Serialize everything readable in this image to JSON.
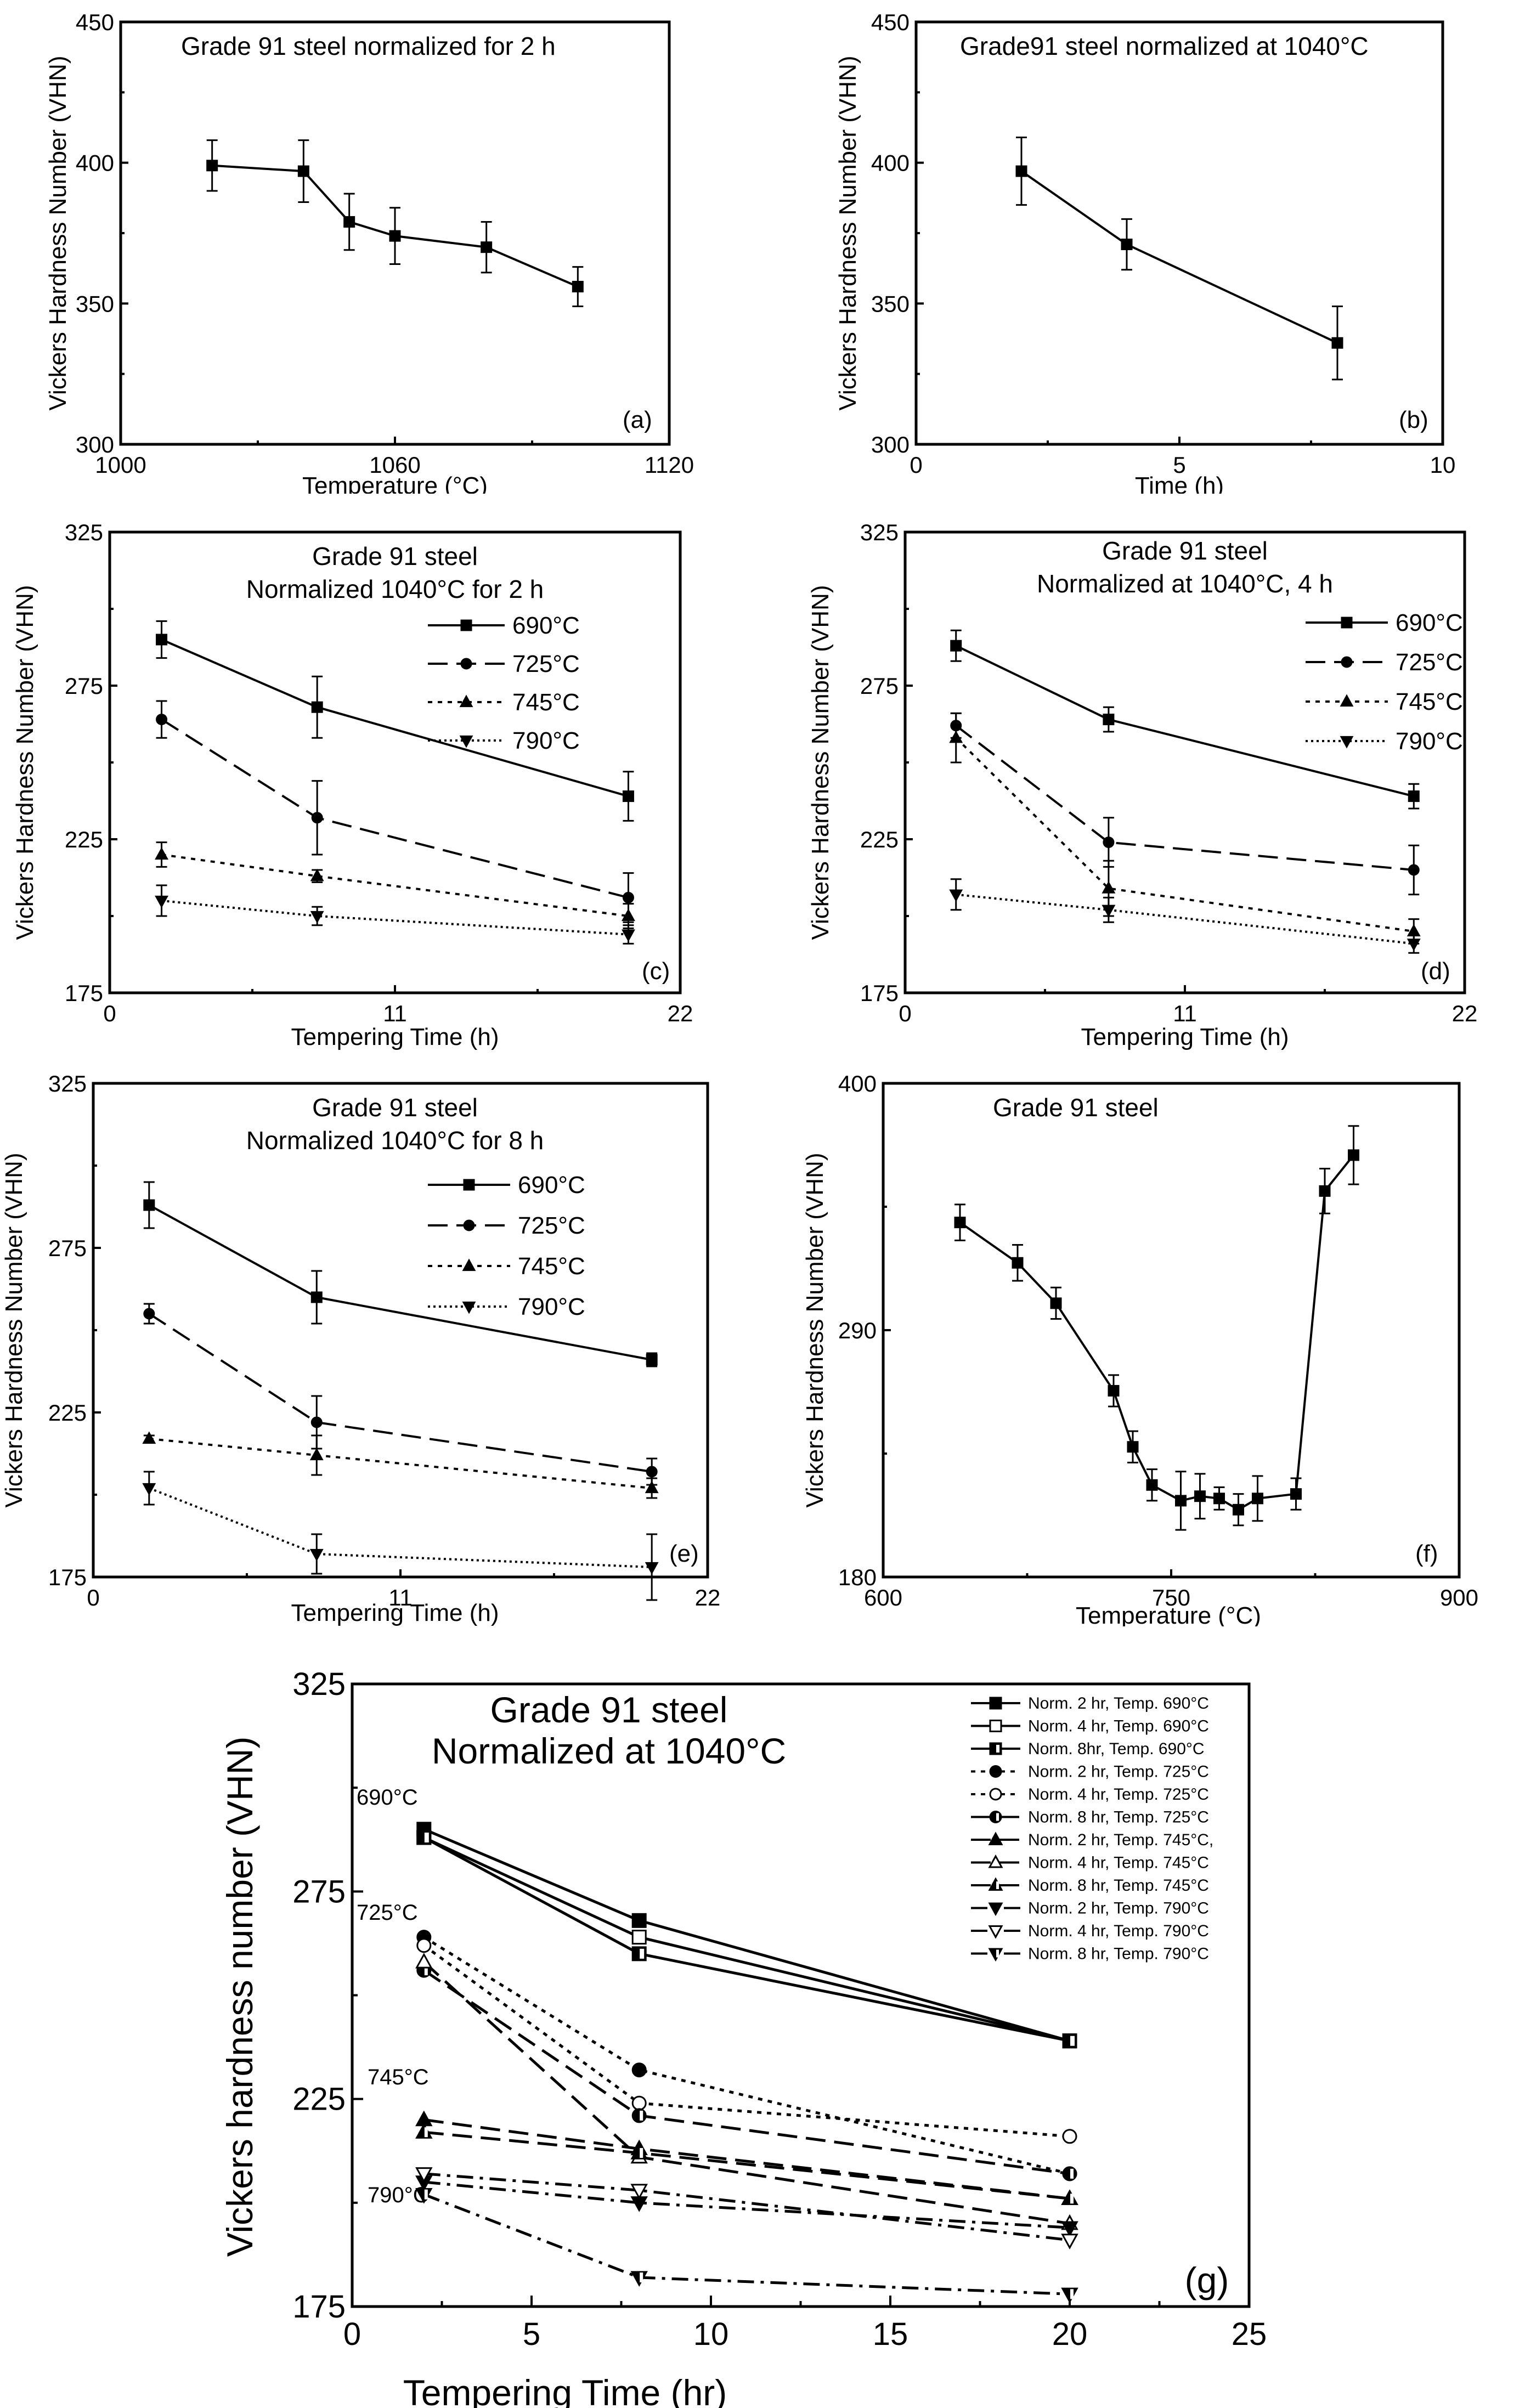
{
  "chart_data": [
    {
      "id": "a",
      "type": "line",
      "title": "Grade 91 steel normalized for 2 h",
      "xlabel": "Temperature (°C)",
      "ylabel": "Vickers Hardness Number (VHN)",
      "panel_label": "(a)",
      "xlim": [
        1000,
        1120
      ],
      "ylim": [
        300,
        450
      ],
      "xticks": [
        1000,
        1060,
        1120
      ],
      "yticks": [
        300,
        350,
        400,
        450
      ],
      "series": [
        {
          "name": "Grade 91",
          "marker": "square",
          "dash": "solid",
          "x": [
            1020,
            1040,
            1050,
            1060,
            1080,
            1100
          ],
          "values": [
            399,
            397,
            379,
            374,
            370,
            356
          ],
          "errors": [
            9,
            11,
            10,
            10,
            9,
            7
          ]
        }
      ]
    },
    {
      "id": "b",
      "type": "line",
      "title": "Grade91 steel normalized at 1040°C",
      "xlabel": "Time (h)",
      "ylabel": "Vickers Hardness Number (VHN)",
      "panel_label": "(b)",
      "xlim": [
        0,
        10
      ],
      "ylim": [
        300,
        450
      ],
      "xticks": [
        0,
        5,
        10
      ],
      "yticks": [
        300,
        350,
        400,
        450
      ],
      "series": [
        {
          "name": "Grade 91",
          "marker": "square",
          "dash": "solid",
          "x": [
            2,
            4,
            8
          ],
          "values": [
            397,
            371,
            336
          ],
          "errors": [
            12,
            9,
            13
          ]
        }
      ]
    },
    {
      "id": "c",
      "type": "line",
      "title": "Grade 91 steel",
      "subtitle": "Normalized 1040°C for 2 h",
      "xlabel": "Tempering Time (h)",
      "ylabel": "Vickers Hardness Number (VHN)",
      "panel_label": "(c)",
      "xlim": [
        0,
        22
      ],
      "ylim": [
        175,
        325
      ],
      "xticks": [
        0,
        11,
        22
      ],
      "yticks": [
        175,
        225,
        275,
        325
      ],
      "series": [
        {
          "name": "690°C",
          "marker": "square",
          "dash": "solid",
          "x": [
            2,
            8,
            20
          ],
          "values": [
            290,
            268,
            239
          ],
          "errors": [
            6,
            10,
            8
          ]
        },
        {
          "name": "725°C",
          "marker": "circle",
          "dash": "dashed",
          "x": [
            2,
            8,
            20
          ],
          "values": [
            264,
            232,
            206
          ],
          "errors": [
            6,
            12,
            8
          ]
        },
        {
          "name": "745°C",
          "marker": "triangle-up",
          "dash": "dotted",
          "x": [
            2,
            8,
            20
          ],
          "values": [
            220,
            213,
            200
          ],
          "errors": [
            4,
            2,
            4
          ]
        },
        {
          "name": "790°C",
          "marker": "triangle-down",
          "dash": "dense-dotted",
          "x": [
            2,
            8,
            20
          ],
          "values": [
            205,
            200,
            194
          ],
          "errors": [
            5,
            3,
            3
          ]
        }
      ]
    },
    {
      "id": "d",
      "type": "line",
      "title": "Grade 91 steel",
      "subtitle": "Normalized at 1040°C, 4 h",
      "xlabel": "Tempering Time (h)",
      "ylabel": "Vickers Hardness Number (VHN)",
      "panel_label": "(d)",
      "xlim": [
        0,
        22
      ],
      "ylim": [
        175,
        325
      ],
      "xticks": [
        0,
        11,
        22
      ],
      "yticks": [
        175,
        225,
        275,
        325
      ],
      "series": [
        {
          "name": "690°C",
          "marker": "square",
          "dash": "solid",
          "x": [
            2,
            8,
            20
          ],
          "values": [
            288,
            264,
            239
          ],
          "errors": [
            5,
            4,
            4
          ]
        },
        {
          "name": "725°C",
          "marker": "circle",
          "dash": "dashed",
          "x": [
            2,
            8,
            20
          ],
          "values": [
            262,
            224,
            215
          ],
          "errors": [
            4,
            8,
            8
          ]
        },
        {
          "name": "745°C",
          "marker": "triangle-up",
          "dash": "dotted",
          "x": [
            2,
            8,
            20
          ],
          "values": [
            258,
            209,
            195
          ],
          "errors": [
            8,
            9,
            4
          ]
        },
        {
          "name": "790°C",
          "marker": "triangle-down",
          "dash": "dense-dotted",
          "x": [
            2,
            8,
            20
          ],
          "values": [
            207,
            202,
            191
          ],
          "errors": [
            5,
            4,
            3
          ]
        }
      ]
    },
    {
      "id": "e",
      "type": "line",
      "title": "Grade 91 steel",
      "subtitle": "Normalized 1040°C for 8 h",
      "xlabel": "Tempering Time (h)",
      "ylabel": "Vickers Hardness Number (VHN)",
      "panel_label": "(e)",
      "xlim": [
        0,
        22
      ],
      "ylim": [
        175,
        325
      ],
      "xticks": [
        0,
        11,
        22
      ],
      "yticks": [
        175,
        225,
        275,
        325
      ],
      "series": [
        {
          "name": "690°C",
          "marker": "square",
          "dash": "solid",
          "x": [
            2,
            8,
            20
          ],
          "values": [
            288,
            260,
            241
          ],
          "errors": [
            7,
            8,
            2
          ]
        },
        {
          "name": "725°C",
          "marker": "circle",
          "dash": "dashed",
          "x": [
            2,
            8,
            20
          ],
          "values": [
            255,
            222,
            207
          ],
          "errors": [
            3,
            8,
            4
          ]
        },
        {
          "name": "745°C",
          "marker": "triangle-up",
          "dash": "dotted",
          "x": [
            2,
            8,
            20
          ],
          "values": [
            217,
            212,
            202
          ],
          "errors": [
            1,
            6,
            3
          ]
        },
        {
          "name": "790°C",
          "marker": "triangle-down",
          "dash": "dense-dotted",
          "x": [
            2,
            8,
            20
          ],
          "values": [
            202,
            182,
            178
          ],
          "errors": [
            5,
            6,
            10
          ]
        }
      ]
    },
    {
      "id": "f",
      "type": "line",
      "title": "Grade 91 steel",
      "xlabel": "Temperature (°C)",
      "ylabel": "Vickers Hardness Number (VHN)",
      "panel_label": "(f)",
      "xlim": [
        600,
        900
      ],
      "ylim": [
        180,
        400
      ],
      "xticks": [
        600,
        750,
        900
      ],
      "yticks": [
        180,
        290,
        400
      ],
      "series": [
        {
          "name": "Grade 91",
          "marker": "square",
          "dash": "solid",
          "x": [
            640,
            670,
            690,
            720,
            730,
            740,
            755,
            765,
            775,
            785,
            795,
            815,
            830,
            845
          ],
          "values": [
            338,
            320,
            302,
            263,
            238,
            221,
            214,
            216,
            215,
            210,
            215,
            217,
            352,
            368
          ],
          "errors": [
            8,
            8,
            7,
            7,
            7,
            7,
            13,
            10,
            5,
            7,
            10,
            7,
            10,
            13
          ]
        }
      ]
    },
    {
      "id": "g",
      "type": "line",
      "title": "Grade 91 steel",
      "subtitle": "Normalized at 1040°C",
      "xlabel": "Tempering Time (hr)",
      "ylabel": "Vickers hardness number (VHN)",
      "panel_label": "(g)",
      "xlim": [
        0,
        25
      ],
      "ylim": [
        175,
        325
      ],
      "xticks": [
        0,
        5,
        10,
        15,
        20,
        25
      ],
      "yticks": [
        175,
        225,
        275,
        325
      ],
      "annotations": [
        "690°C",
        "725°C",
        "745°C",
        "790°C"
      ],
      "series": [
        {
          "name": "Norm. 2 hr, Temp. 690°C",
          "marker": "square",
          "fill": "black",
          "dash": "solid",
          "x": [
            2,
            8,
            20
          ],
          "values": [
            290,
            268,
            239
          ]
        },
        {
          "name": "Norm. 4 hr, Temp. 690°C",
          "marker": "square",
          "fill": "white",
          "dash": "solid",
          "x": [
            2,
            8,
            20
          ],
          "values": [
            288,
            264,
            239
          ]
        },
        {
          "name": "Norm. 8hr, Temp. 690°C",
          "marker": "square",
          "fill": "half",
          "dash": "solid",
          "x": [
            2,
            8,
            20
          ],
          "values": [
            288,
            260,
            239
          ]
        },
        {
          "name": "Norm. 2 hr, Temp. 725°C",
          "marker": "circle",
          "fill": "black",
          "dash": "dotted",
          "x": [
            2,
            8,
            20
          ],
          "values": [
            264,
            232,
            207
          ]
        },
        {
          "name": "Norm. 4 hr, Temp. 725°C",
          "marker": "circle",
          "fill": "white",
          "dash": "dotted",
          "x": [
            2,
            8,
            20
          ],
          "values": [
            262,
            224,
            216
          ]
        },
        {
          "name": "Norm. 8 hr, Temp. 725°C",
          "marker": "circle",
          "fill": "half",
          "dash": "dashed",
          "x": [
            2,
            8,
            20
          ],
          "values": [
            256,
            221,
            207
          ]
        },
        {
          "name": "Norm. 2 hr, Temp. 745°C,",
          "marker": "triangle-up",
          "fill": "black",
          "dash": "dashed",
          "x": [
            2,
            8,
            20
          ],
          "values": [
            220,
            213,
            201
          ]
        },
        {
          "name": "Norm. 4 hr, Temp. 745°C",
          "marker": "triangle-up",
          "fill": "white",
          "dash": "dashed",
          "x": [
            2,
            8,
            20
          ],
          "values": [
            258,
            211,
            195
          ]
        },
        {
          "name": "Norm. 8 hr, Temp. 745°C",
          "marker": "triangle-up",
          "fill": "half",
          "dash": "dashed",
          "x": [
            2,
            8,
            20
          ],
          "values": [
            217,
            212,
            201
          ]
        },
        {
          "name": "Norm. 2 hr, Temp. 790°C",
          "marker": "triangle-down",
          "fill": "black",
          "dash": "dashdot",
          "x": [
            2,
            8,
            20
          ],
          "values": [
            205,
            200,
            194
          ]
        },
        {
          "name": "Norm. 4 hr, Temp. 790°C",
          "marker": "triangle-down",
          "fill": "white",
          "dash": "dashdot",
          "x": [
            2,
            8,
            20
          ],
          "values": [
            207,
            203,
            191
          ]
        },
        {
          "name": "Norm. 8 hr, Temp. 790°C",
          "marker": "triangle-down",
          "fill": "half",
          "dash": "dashdot",
          "x": [
            2,
            8,
            20
          ],
          "values": [
            202,
            182,
            178
          ]
        }
      ]
    }
  ]
}
